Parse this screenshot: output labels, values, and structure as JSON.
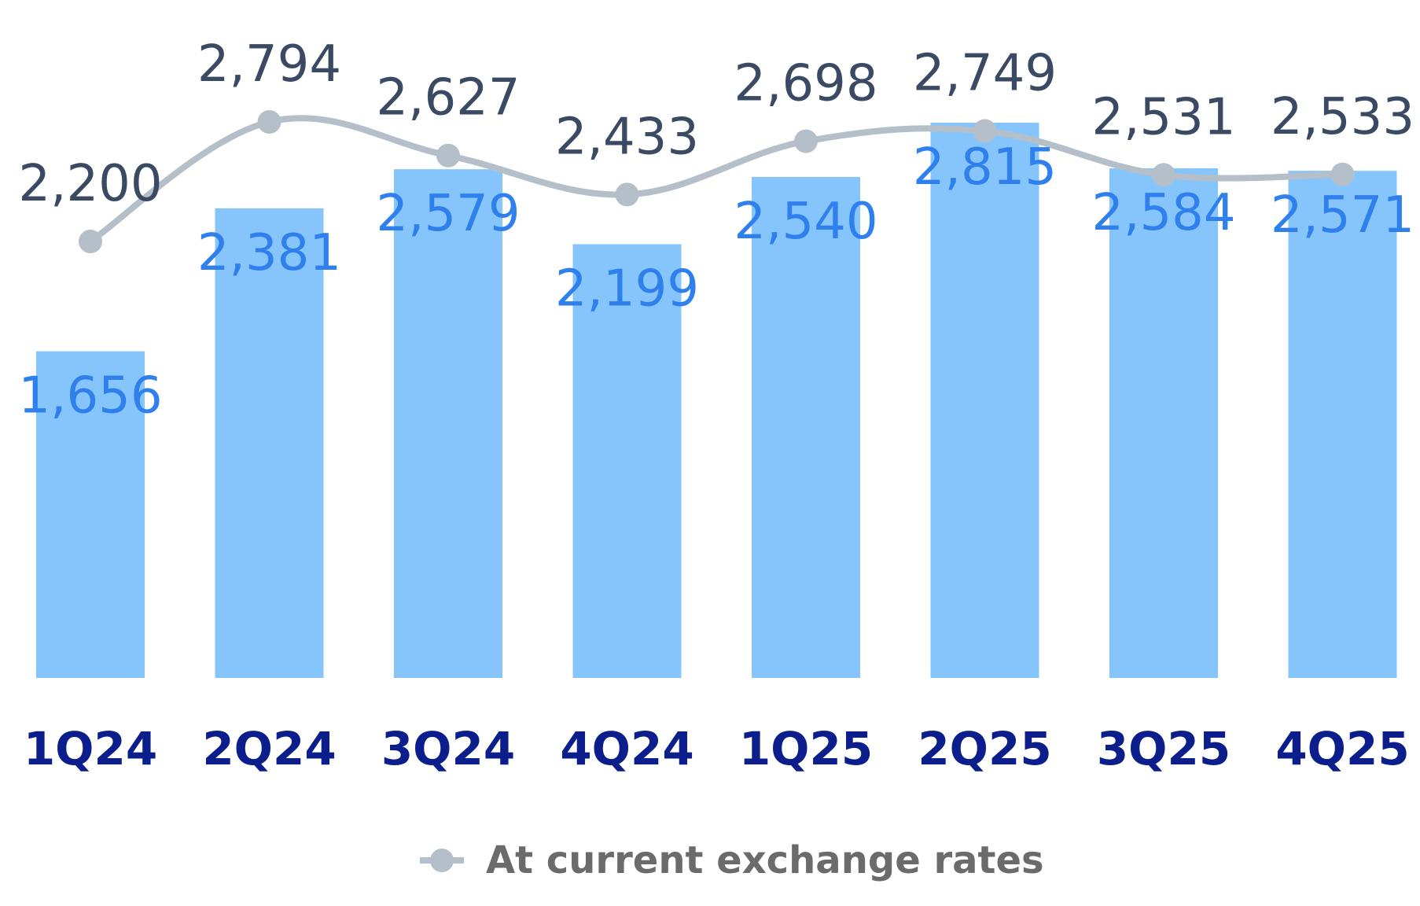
{
  "chart_data": {
    "type": "bar",
    "categories": [
      "1Q24",
      "2Q24",
      "3Q24",
      "4Q24",
      "1Q25",
      "2Q25",
      "3Q25",
      "4Q25"
    ],
    "series": [
      {
        "values": [
          1656,
          2381,
          2579,
          2199,
          2540,
          2815,
          2584,
          2571
        ],
        "labels": [
          "1,656",
          "2,381",
          "2,579",
          "2,199",
          "2,540",
          "2,815",
          "2,584",
          "2,571"
        ],
        "kind": "bar",
        "color": "#85C5FC",
        "label_color": "#2F80ED"
      },
      {
        "name": "At current exchange rates",
        "values": [
          2200,
          2794,
          2627,
          2433,
          2698,
          2749,
          2531,
          2533
        ],
        "labels": [
          "2,200",
          "2,794",
          "2,627",
          "2,433",
          "2,698",
          "2,749",
          "2,531",
          "2,533"
        ],
        "kind": "line",
        "color": "#B5BFC9",
        "label_color": "#3B4A63"
      }
    ],
    "legend": {
      "position": "bottom",
      "entries": [
        "At current exchange rates"
      ]
    },
    "grid": false,
    "category_label_color": "#0B1E8C"
  }
}
